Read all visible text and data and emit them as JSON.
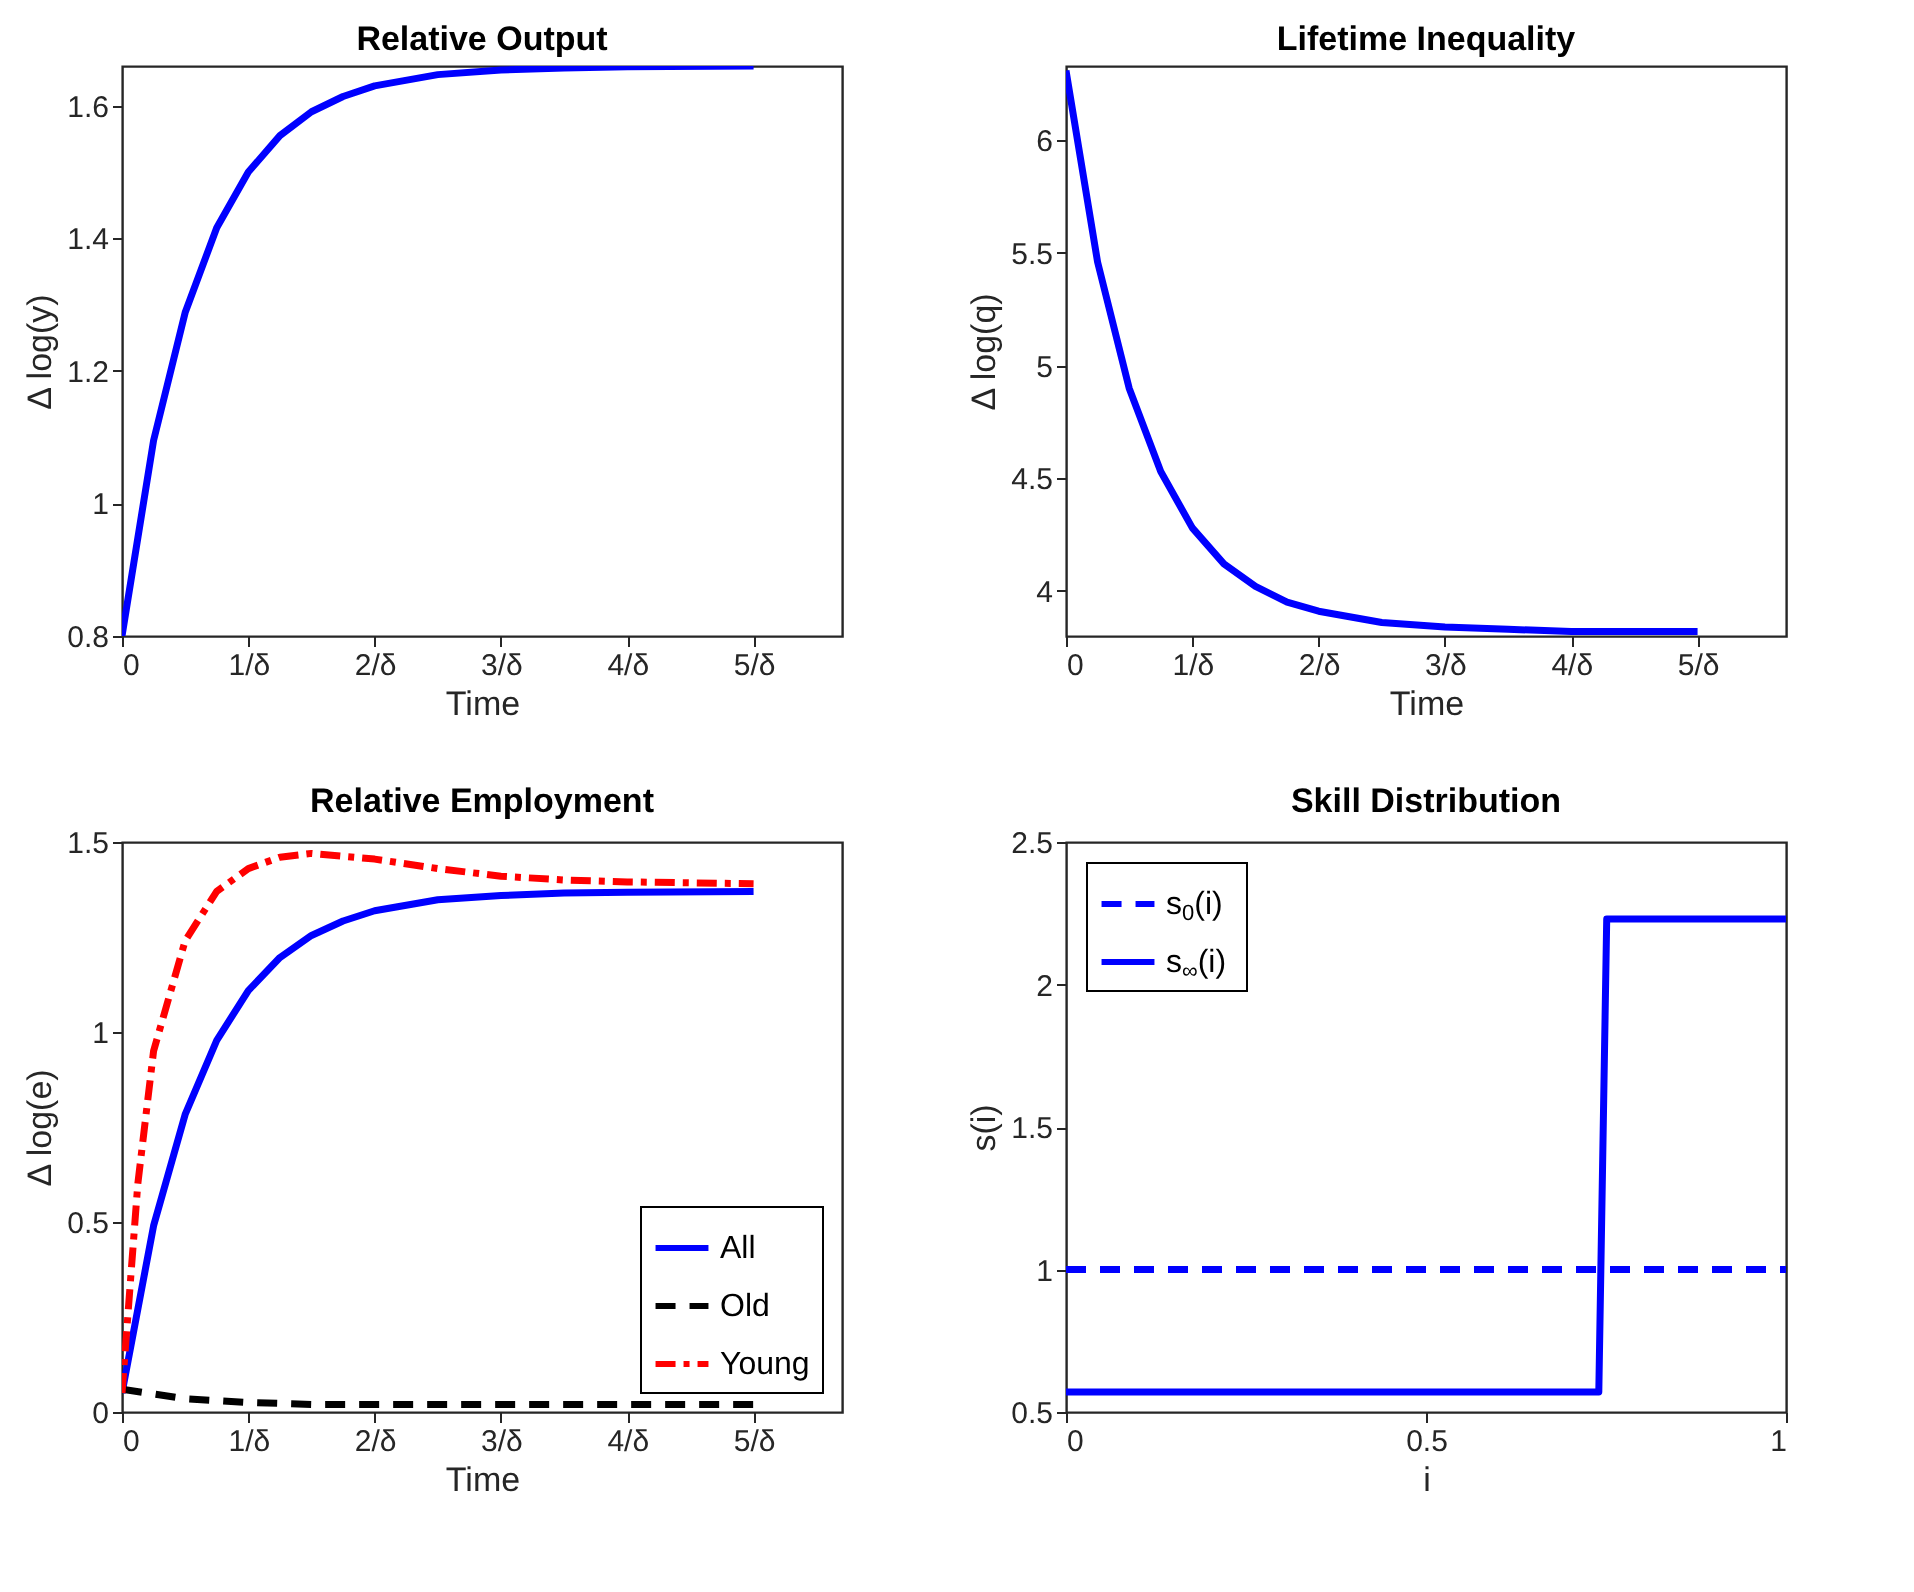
{
  "chart_data": [
    {
      "type": "line",
      "title": "Relative Output",
      "xlabel": "Time",
      "ylabel": "Δ log(y)",
      "x": [
        0,
        0.25,
        0.5,
        0.75,
        1,
        1.25,
        1.5,
        1.75,
        2,
        2.5,
        3,
        3.5,
        4,
        5
      ],
      "series": [
        {
          "color": "#0000ff",
          "line_style": "solid",
          "values": [
            0.8,
            1.095,
            1.288,
            1.416,
            1.5,
            1.555,
            1.591,
            1.614,
            1.63,
            1.647,
            1.654,
            1.657,
            1.659,
            1.66
          ]
        }
      ],
      "xlim": [
        0,
        5.7
      ],
      "xticks": [
        0,
        {
          "value": 1,
          "label": "1/δ"
        },
        {
          "value": 2,
          "label": "2/δ"
        },
        {
          "value": 3,
          "label": "3/δ"
        },
        {
          "value": 4,
          "label": "4/δ"
        },
        {
          "value": 5,
          "label": "5/δ"
        }
      ],
      "ylim": [
        0.8,
        1.66
      ],
      "yticks": [
        0.8,
        1,
        1.2,
        1.4,
        1.6
      ]
    },
    {
      "type": "line",
      "title": "Lifetime Inequality",
      "xlabel": "Time",
      "ylabel": "Δ log(q)",
      "x": [
        0,
        0.25,
        0.5,
        0.75,
        1,
        1.25,
        1.5,
        1.75,
        2,
        2.5,
        3,
        3.5,
        4,
        5
      ],
      "series": [
        {
          "color": "#0000ff",
          "line_style": "solid",
          "values": [
            6.31,
            5.46,
            4.9,
            4.53,
            4.28,
            4.12,
            4.02,
            3.95,
            3.91,
            3.86,
            3.84,
            3.83,
            3.82,
            3.82
          ]
        }
      ],
      "xlim": [
        0,
        5.7
      ],
      "xticks": [
        0,
        {
          "value": 1,
          "label": "1/δ"
        },
        {
          "value": 2,
          "label": "2/δ"
        },
        {
          "value": 3,
          "label": "3/δ"
        },
        {
          "value": 4,
          "label": "4/δ"
        },
        {
          "value": 5,
          "label": "5/δ"
        }
      ],
      "ylim": [
        3.8,
        6.33
      ],
      "yticks": [
        4,
        4.5,
        5,
        5.5,
        6
      ]
    },
    {
      "type": "line",
      "title": "Relative Employment",
      "xlabel": "Time",
      "ylabel": "Δ log(e)",
      "legend": "bottom right",
      "series": [
        {
          "name": "All",
          "color": "#0000ff",
          "line_style": "solid",
          "x": [
            0,
            0.25,
            0.5,
            0.75,
            1,
            1.25,
            1.5,
            1.75,
            2,
            2.5,
            3,
            3.5,
            4,
            5
          ],
          "values": [
            0.05,
            0.49,
            0.783,
            0.978,
            1.109,
            1.196,
            1.254,
            1.292,
            1.319,
            1.348,
            1.359,
            1.366,
            1.368,
            1.37
          ]
        },
        {
          "name": "Old",
          "color": "#000000",
          "line_style": "dashed",
          "x": [
            0,
            0.5,
            1,
            1.5,
            5
          ],
          "values": [
            0.06,
            0.035,
            0.025,
            0.02,
            0.02
          ]
        },
        {
          "name": "Young",
          "color": "#ff0000",
          "line_style": "dashdot",
          "x": [
            0,
            0.125,
            0.25,
            0.5,
            0.75,
            1,
            1.25,
            1.5,
            2,
            2.5,
            3,
            3.5,
            4,
            5
          ],
          "values": [
            0.05,
            0.6,
            0.95,
            1.24,
            1.37,
            1.43,
            1.46,
            1.47,
            1.455,
            1.43,
            1.41,
            1.4,
            1.395,
            1.39
          ]
        }
      ],
      "xlim": [
        0,
        5.7
      ],
      "xticks": [
        0,
        {
          "value": 1,
          "label": "1/δ"
        },
        {
          "value": 2,
          "label": "2/δ"
        },
        {
          "value": 3,
          "label": "3/δ"
        },
        {
          "value": 4,
          "label": "4/δ"
        },
        {
          "value": 5,
          "label": "5/δ"
        }
      ],
      "ylim": [
        0,
        1.5
      ],
      "yticks": [
        0,
        0.5,
        1,
        1.5
      ]
    },
    {
      "type": "line",
      "title": "Skill Distribution",
      "xlabel": "i",
      "ylabel": "s(i)",
      "legend": "top left",
      "series": [
        {
          "name": "s$_{0}$(i)",
          "color": "#0000ff",
          "line_style": "dashed",
          "x": [
            0,
            1
          ],
          "values": [
            1,
            1
          ]
        },
        {
          "name": "s$_{∞}$(i)",
          "color": "#0000ff",
          "line_style": "solid",
          "x": [
            0,
            0.74,
            0.751,
            1
          ],
          "values": [
            0.57,
            0.57,
            2.23,
            2.23
          ]
        }
      ],
      "xlim": [
        0,
        1
      ],
      "xticks": [
        0,
        0.5,
        1
      ],
      "ylim": [
        0.5,
        2.5
      ],
      "yticks": [
        0.5,
        1,
        1.5,
        2,
        2.5
      ]
    }
  ]
}
